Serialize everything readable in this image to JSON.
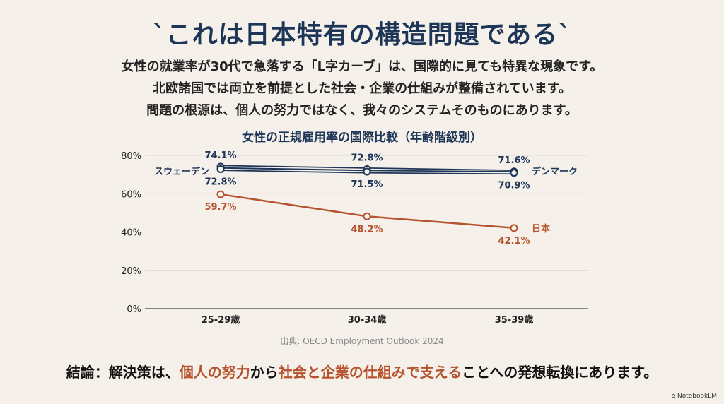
{
  "title": "`これは日本特有の構造問題である`",
  "subtitle_lines": [
    "女性の就業率が30代で急落する「L字カーブ」は、国際的に見ても特異な現象です。",
    "北欧諸国では両立を前提とした社会・企業の仕組みが整備されています。",
    "問題の根源は、個人の努力ではなく、我々のシステムそのものにあります。"
  ],
  "chart_data": {
    "type": "line",
    "title": "女性の正規雇用率の国際比較（年齢階級別）",
    "categories": [
      "25-29歳",
      "30-34歳",
      "35-39歳"
    ],
    "yticks": [
      "0%",
      "20%",
      "40%",
      "60%",
      "80%"
    ],
    "ylim": [
      0,
      80
    ],
    "grid": true,
    "series": [
      {
        "name": "スウェーデン",
        "values": [
          74.1,
          72.8,
          71.6
        ],
        "labels": [
          "74.1%",
          "72.8%",
          "71.6%"
        ],
        "color": "#1d3557"
      },
      {
        "name": "デンマーク",
        "values": [
          72.8,
          71.5,
          70.9
        ],
        "labels": [
          "72.8%",
          "71.5%",
          "70.9%"
        ],
        "color": "#1d3557"
      },
      {
        "name": "日本",
        "values": [
          59.7,
          48.2,
          42.1
        ],
        "labels": [
          "59.7%",
          "48.2%",
          "42.1%"
        ],
        "color": "#b5532e"
      }
    ]
  },
  "source": "出典: OECD Employment Outlook 2024",
  "conclusion": {
    "p1": "結論：解決策は、",
    "h1": "個人の努力",
    "p2": "から",
    "h2": "社会と企業の仕組みで支える",
    "p3": "ことへの発想転換にあります。"
  },
  "brand": "NotebookLM"
}
